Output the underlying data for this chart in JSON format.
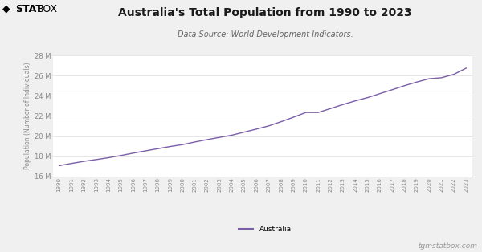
{
  "title": "Australia's Total Population from 1990 to 2023",
  "subtitle": "Data Source: World Development Indicators.",
  "ylabel": "Population (Number of Individuals)",
  "line_color": "#7b5ea7",
  "line_width": 1.0,
  "fig_background_color": "#f0f0f0",
  "plot_background_color": "#ffffff",
  "years": [
    1990,
    1991,
    1992,
    1993,
    1994,
    1995,
    1996,
    1997,
    1998,
    1999,
    2000,
    2001,
    2002,
    2003,
    2004,
    2005,
    2006,
    2007,
    2008,
    2009,
    2010,
    2011,
    2012,
    2013,
    2014,
    2015,
    2016,
    2017,
    2018,
    2019,
    2020,
    2021,
    2022,
    2023
  ],
  "population": [
    17065100,
    17284000,
    17495000,
    17667000,
    17855000,
    18072000,
    18310700,
    18532000,
    18751900,
    18966100,
    19153400,
    19413000,
    19651400,
    19872800,
    20090400,
    20394800,
    20697900,
    21015200,
    21431800,
    21874900,
    22342000,
    22340000,
    22733400,
    23128700,
    23490700,
    23816000,
    24210800,
    24598900,
    25002800,
    25364300,
    25693100,
    25788200,
    26124800,
    26740900
  ],
  "ylim_min": 16000000,
  "ylim_max": 28000000,
  "yticks": [
    16000000,
    18000000,
    20000000,
    22000000,
    24000000,
    26000000,
    28000000
  ],
  "legend_label": "Australia",
  "watermark": "tgmstatbox.com",
  "logo_bold": "STAT",
  "logo_light": "BOX",
  "grid_color": "#dddddd",
  "tick_color": "#888888",
  "title_fontsize": 10,
  "subtitle_fontsize": 7,
  "ylabel_fontsize": 5.5,
  "ytick_fontsize": 6,
  "xtick_fontsize": 5,
  "legend_fontsize": 6.5,
  "watermark_fontsize": 6.5
}
